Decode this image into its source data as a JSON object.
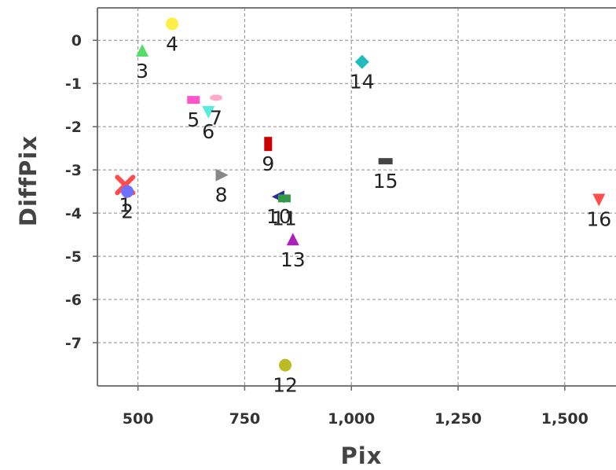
{
  "chart_data": {
    "type": "scatter",
    "title": "",
    "xlabel": "Pix",
    "ylabel": "DiffPix",
    "xlim": [
      405,
      1620
    ],
    "ylim": [
      -8.0,
      0.75
    ],
    "grid": true,
    "x_ticks": [
      500,
      750,
      1000,
      1250,
      1500
    ],
    "x_tick_labels": [
      "500",
      "750",
      "1,000",
      "1,250",
      "1,500"
    ],
    "y_ticks": [
      0,
      -1,
      -2,
      -3,
      -4,
      -5,
      -6,
      -7
    ],
    "y_tick_labels": [
      "0",
      "-1",
      "-2",
      "-3",
      "-4",
      "-5",
      "-6",
      "-7"
    ],
    "series": [
      {
        "label": "1",
        "x": 470,
        "y": -3.35,
        "color": "#ff4c4c",
        "shape": "cross"
      },
      {
        "label": "2",
        "x": 475,
        "y": -3.5,
        "color": "#7070ff",
        "shape": "circle"
      },
      {
        "label": "3",
        "x": 510,
        "y": -0.25,
        "color": "#55dd66",
        "shape": "triangle-up"
      },
      {
        "label": "4",
        "x": 580,
        "y": 0.38,
        "color": "#ffee44",
        "shape": "circle"
      },
      {
        "label": "5",
        "x": 630,
        "y": -1.38,
        "color": "#ff55cc",
        "shape": "rect"
      },
      {
        "label": "6",
        "x": 665,
        "y": -1.65,
        "color": "#55eedd",
        "shape": "triangle-down"
      },
      {
        "label": "7",
        "x": 683,
        "y": -1.33,
        "color": "#ffaacc",
        "shape": "ellipse"
      },
      {
        "label": "8",
        "x": 695,
        "y": -3.12,
        "color": "#888888",
        "shape": "triangle-right"
      },
      {
        "label": "9",
        "x": 805,
        "y": -2.4,
        "color": "#cc0000",
        "shape": "rect-v"
      },
      {
        "label": "10",
        "x": 830,
        "y": -3.62,
        "color": "#2a2aa0",
        "shape": "triangle-left"
      },
      {
        "label": "11",
        "x": 843,
        "y": -3.66,
        "color": "#339944",
        "shape": "rect"
      },
      {
        "label": "12",
        "x": 845,
        "y": -7.52,
        "color": "#bbbb22",
        "shape": "circle"
      },
      {
        "label": "13",
        "x": 863,
        "y": -4.62,
        "color": "#aa22bb",
        "shape": "triangle-up"
      },
      {
        "label": "14",
        "x": 1025,
        "y": -0.5,
        "color": "#22bbbb",
        "shape": "diamond"
      },
      {
        "label": "15",
        "x": 1080,
        "y": -2.8,
        "color": "#444444",
        "shape": "rect-h"
      },
      {
        "label": "16",
        "x": 1580,
        "y": -3.68,
        "color": "#ff4c4c",
        "shape": "triangle-down"
      }
    ]
  }
}
